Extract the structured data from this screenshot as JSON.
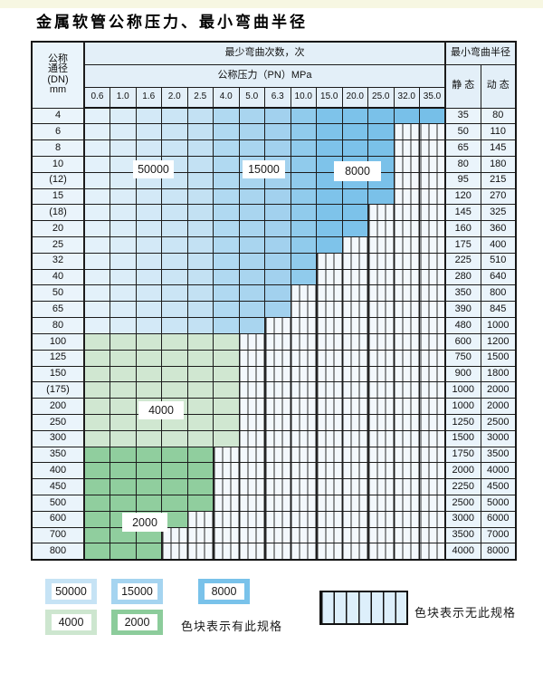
{
  "title": "金属软管公称压力、最小弯曲半径",
  "table": {
    "header": {
      "dn_lines": [
        "公称",
        "通径",
        "(DN)",
        "mm"
      ],
      "cycles": "最少弯曲次数，次",
      "pressure": "公称压力（PN）MPa",
      "radius": "最小弯曲半径",
      "static": "静 态",
      "dynamic": "动 态"
    },
    "columns": [
      "0.6",
      "1.0",
      "1.6",
      "2.0",
      "2.5",
      "4.0",
      "5.0",
      "6.3",
      "10.0",
      "15.0",
      "20.0",
      "25.0",
      "32.0",
      "35.0"
    ],
    "rows": [
      {
        "dn": "4",
        "colored": 14,
        "band": "blue",
        "static": "35",
        "dynamic": "80"
      },
      {
        "dn": "6",
        "colored": 12,
        "band": "blue",
        "static": "50",
        "dynamic": "110"
      },
      {
        "dn": "8",
        "colored": 12,
        "band": "blue",
        "static": "65",
        "dynamic": "145"
      },
      {
        "dn": "10",
        "colored": 12,
        "band": "blue",
        "static": "80",
        "dynamic": "180"
      },
      {
        "dn": "(12)",
        "colored": 12,
        "band": "blue",
        "static": "95",
        "dynamic": "215"
      },
      {
        "dn": "15",
        "colored": 12,
        "band": "blue",
        "static": "120",
        "dynamic": "270"
      },
      {
        "dn": "(18)",
        "colored": 11,
        "band": "blue",
        "static": "145",
        "dynamic": "325"
      },
      {
        "dn": "20",
        "colored": 11,
        "band": "blue",
        "static": "160",
        "dynamic": "360"
      },
      {
        "dn": "25",
        "colored": 10,
        "band": "blue",
        "static": "175",
        "dynamic": "400"
      },
      {
        "dn": "32",
        "colored": 9,
        "band": "blue",
        "static": "225",
        "dynamic": "510"
      },
      {
        "dn": "40",
        "colored": 9,
        "band": "blue",
        "static": "280",
        "dynamic": "640"
      },
      {
        "dn": "50",
        "colored": 8,
        "band": "blue",
        "static": "350",
        "dynamic": "800"
      },
      {
        "dn": "65",
        "colored": 8,
        "band": "blue",
        "static": "390",
        "dynamic": "845"
      },
      {
        "dn": "80",
        "colored": 7,
        "band": "blue",
        "static": "480",
        "dynamic": "1000"
      },
      {
        "dn": "100",
        "colored": 6,
        "band": "g4",
        "static": "600",
        "dynamic": "1200"
      },
      {
        "dn": "125",
        "colored": 6,
        "band": "g4",
        "static": "750",
        "dynamic": "1500"
      },
      {
        "dn": "150",
        "colored": 6,
        "band": "g4",
        "static": "900",
        "dynamic": "1800"
      },
      {
        "dn": "(175)",
        "colored": 6,
        "band": "g4",
        "static": "1000",
        "dynamic": "2000"
      },
      {
        "dn": "200",
        "colored": 6,
        "band": "g4",
        "static": "1000",
        "dynamic": "2000"
      },
      {
        "dn": "250",
        "colored": 6,
        "band": "g4",
        "static": "1250",
        "dynamic": "2500"
      },
      {
        "dn": "300",
        "colored": 6,
        "band": "g4",
        "static": "1500",
        "dynamic": "3000"
      },
      {
        "dn": "350",
        "colored": 5,
        "band": "g2",
        "static": "1750",
        "dynamic": "3500"
      },
      {
        "dn": "400",
        "colored": 5,
        "band": "g2",
        "static": "2000",
        "dynamic": "4000"
      },
      {
        "dn": "450",
        "colored": 5,
        "band": "g2",
        "static": "2250",
        "dynamic": "4500"
      },
      {
        "dn": "500",
        "colored": 5,
        "band": "g2",
        "static": "2500",
        "dynamic": "5000"
      },
      {
        "dn": "600",
        "colored": 4,
        "band": "g2",
        "static": "3000",
        "dynamic": "6000"
      },
      {
        "dn": "700",
        "colored": 3,
        "band": "g2",
        "static": "3500",
        "dynamic": "7000"
      },
      {
        "dn": "800",
        "colored": 3,
        "band": "g2",
        "static": "4000",
        "dynamic": "8000"
      }
    ]
  },
  "overlay_labels": {
    "b50000": "50000",
    "b15000": "15000",
    "b8000": "8000",
    "g4000": "4000",
    "g2000": "2000"
  },
  "legend": {
    "items": [
      {
        "label": "50000",
        "color": "#c6e3f5"
      },
      {
        "label": "15000",
        "color": "#a5d4f0"
      },
      {
        "label": "8000",
        "color": "#79c2ea"
      },
      {
        "label": "4000",
        "color": "#cde6cf"
      },
      {
        "label": "2000",
        "color": "#8ccc9b"
      }
    ],
    "has_spec": "色块表示有此规格",
    "no_spec": "色块表示无此规格"
  },
  "colors": {
    "blue_cols": [
      "#e3f1fa",
      "#dbedf8",
      "#d3e9f7",
      "#cbe5f5",
      "#c3e1f3",
      "#b0d9f1",
      "#a9d5ef",
      "#a2d1ee",
      "#90cbec",
      "#7ec3ea",
      "#7cc2ea",
      "#7ac1e9",
      "#78c0e9",
      "#76bfe8"
    ],
    "green_4000": "#d0e7d1",
    "green_2000": "#90ce9e",
    "hatch_bg": "#f3f8fc",
    "header_bg": "#e3eff8",
    "label_bg": "#eaf4fb",
    "border": "#1c1c1c",
    "top_strip": "#f7f7e2"
  }
}
